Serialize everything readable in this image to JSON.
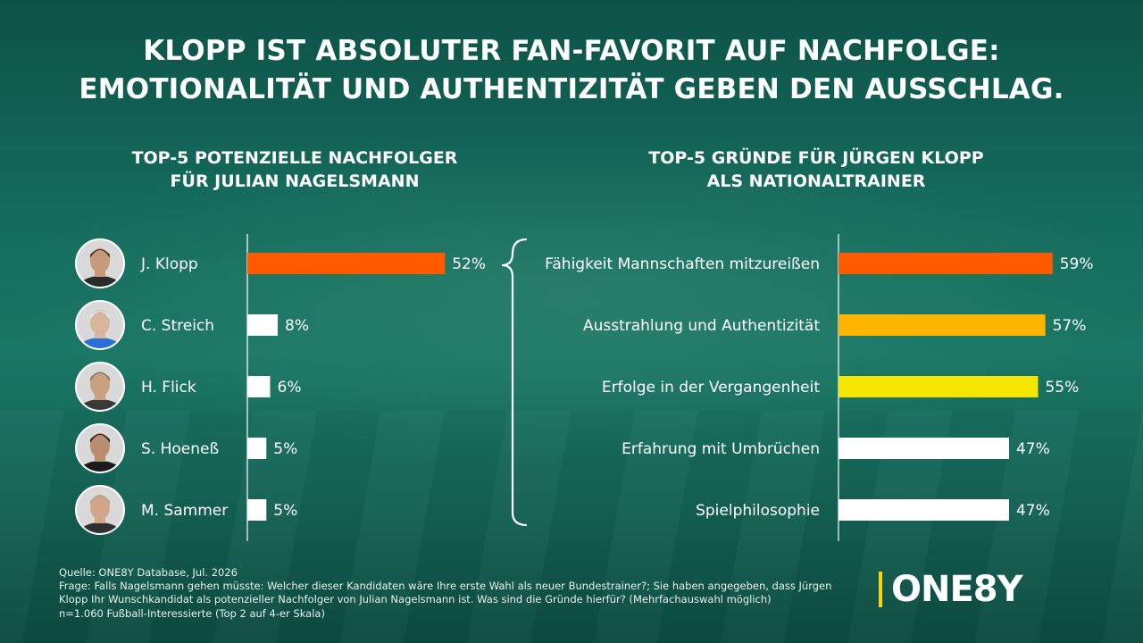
{
  "title_lines": [
    "KLOPP IST ABSOLUTER FAN-FAVORIT AUF NACHFOLGE:",
    "EMOTIONALITÄT UND AUTHENTIZITÄT GEBEN DEN AUSSCHLAG."
  ],
  "left_subtitle_lines": [
    "TOP-5 POTENZIELLE NACHFOLGER",
    "FÜR JULIAN NAGELSMANN"
  ],
  "right_subtitle_lines": [
    "TOP-5 GRÜNDE FÜR JÜRGEN KLOPP",
    "ALS NATIONALTRAINER"
  ],
  "chart_data": [
    {
      "type": "bar",
      "orientation": "horizontal",
      "title": "TOP-5 POTENZIELLE NACHFOLGER FÜR JULIAN NAGELSMANN",
      "categories": [
        "J. Klopp",
        "C. Streich",
        "H. Flick",
        "S. Hoeneß",
        "M. Sammer"
      ],
      "values": [
        52,
        8,
        6,
        5,
        5
      ],
      "value_labels": [
        "52%",
        "8%",
        "6%",
        "5%",
        "5%"
      ],
      "unit": "%",
      "colors": [
        "#ff5a00",
        "#ffffff",
        "#ffffff",
        "#ffffff",
        "#ffffff"
      ],
      "xlim": [
        0,
        55
      ],
      "grid": false,
      "legend": "none"
    },
    {
      "type": "bar",
      "orientation": "horizontal",
      "title": "TOP-5 GRÜNDE FÜR JÜRGEN KLOPP ALS NATIONALTRAINER",
      "categories": [
        "Fähigkeit Mannschaften mitzureißen",
        "Ausstrahlung und Authentizität",
        "Erfolge in der Vergangenheit",
        "Erfahrung mit Umbrüchen",
        "Spielphilosophie"
      ],
      "values": [
        59,
        57,
        55,
        47,
        47
      ],
      "value_labels": [
        "59%",
        "57%",
        "55%",
        "47%",
        "47%"
      ],
      "unit": "%",
      "colors": [
        "#ff5a00",
        "#ffb400",
        "#f5e600",
        "#ffffff",
        "#ffffff"
      ],
      "xlim": [
        0,
        63
      ],
      "grid": false,
      "legend": "none"
    }
  ],
  "colors": {
    "accent_orange": "#ff5a00",
    "accent_amber": "#ffb400",
    "accent_yellow": "#f5e600",
    "bar_white": "#ffffff",
    "logo_bar": "#f5d800"
  },
  "avatar_icons": [
    "person-avatar-klopp",
    "person-avatar-streich",
    "person-avatar-flick",
    "person-avatar-hoeness",
    "person-avatar-sammer"
  ],
  "footer_lines": [
    "Quelle: ONE8Y Database, Jul. 2026",
    "Frage: Falls Nagelsmann gehen müsste: Welcher dieser Kandidaten wäre Ihre erste Wahl als neuer Bundestrainer?; Sie haben angegeben, dass Jürgen",
    "Klopp Ihr Wunschkandidat als potenzieller Nachfolger von Julian Nagelsmann ist. Was sind die Gründe hierfür? (Mehrfachauswahl möglich)",
    "n=1.060 Fußball-Interessierte (Top 2 auf 4-er Skala)"
  ],
  "logo_text": "ONE8Y"
}
